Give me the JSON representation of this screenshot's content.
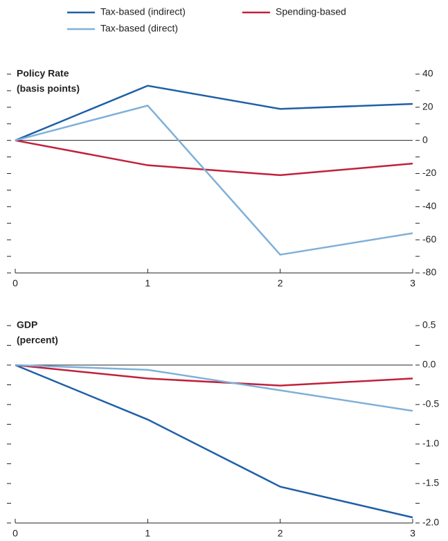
{
  "chart_data": [
    {
      "type": "line",
      "title": "Policy Rate",
      "subtitle": "(basis points)",
      "x": [
        0,
        1,
        2,
        3
      ],
      "xlim": [
        0,
        3
      ],
      "xticks": [
        0,
        1,
        2,
        3
      ],
      "ylim": [
        -80,
        40
      ],
      "yticks": [
        -80,
        -60,
        -40,
        -20,
        0,
        20,
        40
      ],
      "minor_yticks": [
        -70,
        -50,
        -30,
        -10,
        10,
        30
      ],
      "series": [
        {
          "name": "Tax-based (indirect)",
          "color": "#1f5fa6",
          "values": [
            0,
            33,
            19,
            22
          ]
        },
        {
          "name": "Spending-based",
          "color": "#c0203c",
          "values": [
            0,
            -15,
            -21,
            -14
          ]
        },
        {
          "name": "Tax-based (direct)",
          "color": "#7fb0d9",
          "values": [
            0,
            21,
            -69,
            -56
          ]
        }
      ]
    },
    {
      "type": "line",
      "title": "GDP",
      "subtitle": "(percent)",
      "x": [
        0,
        1,
        2,
        3
      ],
      "xlim": [
        0,
        3
      ],
      "xticks": [
        0,
        1,
        2,
        3
      ],
      "ylim": [
        -2,
        0.5
      ],
      "yticks": [
        {
          "value": -2,
          "label": "-2.0"
        },
        -1.5,
        {
          "value": -1,
          "label": "-1.0"
        },
        -0.5,
        {
          "value": 0,
          "label": "0.0"
        },
        0.5
      ],
      "minor_yticks": [
        -1.75,
        -1.25,
        -0.75,
        -0.25,
        0.25
      ],
      "series": [
        {
          "name": "Tax-based (indirect)",
          "color": "#1f5fa6",
          "values": [
            0,
            -0.69,
            -1.54,
            -1.93
          ]
        },
        {
          "name": "Spending-based",
          "color": "#c0203c",
          "values": [
            0,
            -0.17,
            -0.26,
            -0.17
          ]
        },
        {
          "name": "Tax-based (direct)",
          "color": "#7fb0d9",
          "values": [
            0,
            -0.06,
            -0.32,
            -0.58
          ]
        }
      ]
    }
  ]
}
